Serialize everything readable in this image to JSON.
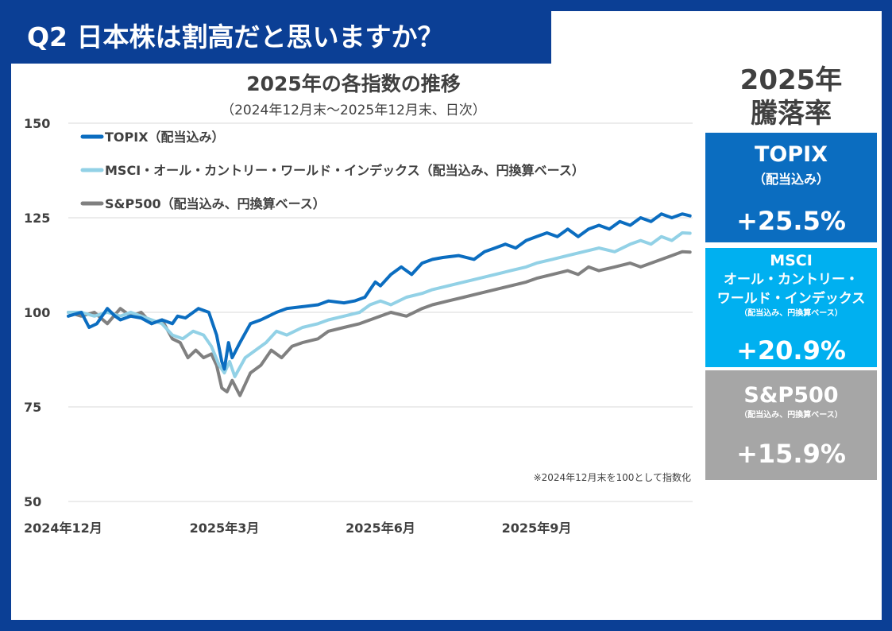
{
  "header": {
    "question": "Q2 日本株は割高だと思いますか？"
  },
  "side": {
    "title_line1": "2025年",
    "title_line2": "騰落率",
    "cards": [
      {
        "name": "TOPIX",
        "sub": "（配当込み）",
        "value": "+25.5%",
        "color": "#0b6dc0"
      },
      {
        "name": "MSCI",
        "name2": "オール・カントリー・",
        "name3": "ワールド・インデックス",
        "sub": "（配当込み、円換算ベース）",
        "value": "+20.9%",
        "color": "#00b0f0"
      },
      {
        "name": "S&P500",
        "sub": "（配当込み、円換算ベース）",
        "value": "+15.9%",
        "color": "#a6a6a6"
      }
    ]
  },
  "chart_data": {
    "type": "line",
    "title": "2025年の各指数の推移",
    "subtitle": "（2024年12月末～2025年12月末、日次）",
    "note": "※2024年12月末を100として指数化",
    "ylim": [
      50,
      150
    ],
    "yticks": [
      50,
      75,
      100,
      125,
      150
    ],
    "xlim": [
      0,
      12
    ],
    "xticks": [
      {
        "x": 0,
        "label": "2024年12月"
      },
      {
        "x": 3,
        "label": "2025年3月"
      },
      {
        "x": 6,
        "label": "2025年6月"
      },
      {
        "x": 9,
        "label": "2025年9月"
      }
    ],
    "grid": true,
    "legend_position": "top-left",
    "series": [
      {
        "name": "TOPIX（配当込み）",
        "color": "#0b6dc0",
        "x": [
          0,
          0.25,
          0.4,
          0.55,
          0.75,
          0.9,
          1.0,
          1.2,
          1.4,
          1.6,
          1.8,
          2.0,
          2.1,
          2.25,
          2.5,
          2.7,
          2.85,
          2.95,
          3.0,
          3.08,
          3.15,
          3.3,
          3.5,
          3.7,
          3.85,
          4.0,
          4.2,
          4.5,
          4.8,
          5.0,
          5.3,
          5.5,
          5.7,
          5.8,
          5.9,
          6.0,
          6.2,
          6.4,
          6.6,
          6.8,
          7.0,
          7.2,
          7.5,
          7.8,
          8.0,
          8.2,
          8.4,
          8.6,
          8.8,
          9.0,
          9.2,
          9.4,
          9.6,
          9.8,
          10.0,
          10.2,
          10.4,
          10.6,
          10.8,
          11.0,
          11.2,
          11.4,
          11.6,
          11.8,
          11.95
        ],
        "values": [
          99,
          100,
          96,
          97,
          101,
          99,
          98,
          99,
          98.5,
          97,
          98,
          97,
          99,
          98.5,
          101,
          100,
          94,
          87,
          85,
          92,
          88,
          92,
          97,
          98,
          99,
          100,
          101,
          101.5,
          102,
          103,
          102.5,
          103,
          104,
          106,
          108,
          107,
          110,
          112,
          110,
          113,
          114,
          114.5,
          115,
          114,
          116,
          117,
          118,
          117,
          119,
          120,
          121,
          120,
          122,
          120,
          122,
          123,
          122,
          124,
          123,
          125,
          124,
          126,
          125,
          126,
          125.5
        ]
      },
      {
        "name": "MSCI・オール・カントリー・ワールド・インデックス（配当込み、円換算ベース）",
        "color": "#92d1e6",
        "x": [
          0,
          0.25,
          0.5,
          0.75,
          1.0,
          1.2,
          1.4,
          1.6,
          1.8,
          2.0,
          2.2,
          2.4,
          2.6,
          2.75,
          2.9,
          3.0,
          3.1,
          3.2,
          3.4,
          3.6,
          3.8,
          4.0,
          4.2,
          4.5,
          4.8,
          5.0,
          5.3,
          5.6,
          5.8,
          6.0,
          6.2,
          6.5,
          6.8,
          7.0,
          7.3,
          7.6,
          7.9,
          8.2,
          8.5,
          8.8,
          9.0,
          9.3,
          9.6,
          9.9,
          10.2,
          10.5,
          10.8,
          11.0,
          11.2,
          11.4,
          11.6,
          11.8,
          11.95
        ],
        "values": [
          100,
          100,
          99,
          100,
          99,
          100,
          99,
          98,
          97,
          94,
          93,
          95,
          94,
          91,
          86,
          84,
          87,
          83,
          88,
          90,
          92,
          95,
          94,
          96,
          97,
          98,
          99,
          100,
          102,
          103,
          102,
          104,
          105,
          106,
          107,
          108,
          109,
          110,
          111,
          112,
          113,
          114,
          115,
          116,
          117,
          116,
          118,
          119,
          118,
          120,
          119,
          121,
          120.9
        ]
      },
      {
        "name": "S&P500（配当込み、円換算ベース）",
        "color": "#808080",
        "x": [
          0,
          0.25,
          0.5,
          0.75,
          1.0,
          1.2,
          1.4,
          1.6,
          1.8,
          2.0,
          2.15,
          2.3,
          2.45,
          2.6,
          2.75,
          2.85,
          2.95,
          3.05,
          3.15,
          3.3,
          3.5,
          3.7,
          3.9,
          4.1,
          4.3,
          4.5,
          4.8,
          5.0,
          5.3,
          5.6,
          5.8,
          6.0,
          6.2,
          6.5,
          6.8,
          7.0,
          7.3,
          7.6,
          7.9,
          8.2,
          8.5,
          8.8,
          9.0,
          9.3,
          9.6,
          9.8,
          10.0,
          10.2,
          10.5,
          10.8,
          11.0,
          11.2,
          11.4,
          11.6,
          11.8,
          11.95
        ],
        "values": [
          100,
          99,
          100,
          97,
          101,
          99,
          100,
          97,
          98,
          93,
          92,
          88,
          90,
          88,
          89,
          86,
          80,
          79,
          82,
          78,
          84,
          86,
          90,
          88,
          91,
          92,
          93,
          95,
          96,
          97,
          98,
          99,
          100,
          99,
          101,
          102,
          103,
          104,
          105,
          106,
          107,
          108,
          109,
          110,
          111,
          110,
          112,
          111,
          112,
          113,
          112,
          113,
          114,
          115,
          116,
          115.9
        ]
      }
    ]
  }
}
